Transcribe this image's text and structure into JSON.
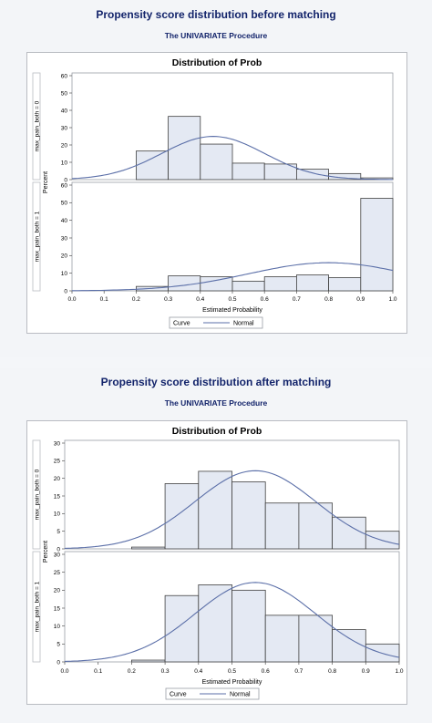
{
  "panels": [
    {
      "page_title": "Propensity score distribution before matching",
      "procedure": "The UNIVARIATE Procedure"
    },
    {
      "page_title": "Propensity score distribution after matching",
      "procedure": "The UNIVARIATE Procedure"
    }
  ],
  "colors": {
    "bar_fill": "#e4e9f3",
    "bar_stroke": "#404040",
    "curve": "#5b6fa8",
    "title_text": "#13246b"
  },
  "chart_data": [
    {
      "type": "bar",
      "title": "Distribution of Prob",
      "xlabel": "Estimated Probability",
      "ylabel": "Percent",
      "xlim": [
        0.0,
        1.0
      ],
      "xticks": [
        "0.0",
        "0.1",
        "0.2",
        "0.3",
        "0.4",
        "0.5",
        "0.6",
        "0.7",
        "0.8",
        "0.9",
        "1.0"
      ],
      "bin_edges": [
        0.2,
        0.3,
        0.4,
        0.5,
        0.6,
        0.7,
        0.8,
        0.9,
        1.0
      ],
      "legend": {
        "title": "Curve",
        "entries": [
          "Normal"
        ],
        "placement": "bottom-center"
      },
      "grid": false,
      "series": [
        {
          "name": "max_pain_both = 0",
          "ylim": [
            0,
            60
          ],
          "yticks": [
            "0",
            "10",
            "20",
            "30",
            "40",
            "50",
            "60"
          ],
          "values": [
            16.5,
            36.5,
            20.5,
            9.5,
            9.0,
            6.0,
            3.5,
            1.0
          ],
          "normal_mean": 0.44,
          "normal_sd": 0.16
        },
        {
          "name": "max_pain_both = 1",
          "ylim": [
            0,
            60
          ],
          "yticks": [
            "0",
            "10",
            "20",
            "30",
            "40",
            "50",
            "60"
          ],
          "values": [
            2.5,
            8.5,
            8.0,
            5.5,
            8.0,
            9.0,
            7.5,
            52.5
          ],
          "normal_mean": 0.8,
          "normal_sd": 0.25
        }
      ]
    },
    {
      "type": "bar",
      "title": "Distribution of Prob",
      "xlabel": "Estimated Probability",
      "ylabel": "Percent",
      "xlim": [
        0.0,
        1.0
      ],
      "xticks": [
        "0.0",
        "0.1",
        "0.2",
        "0.3",
        "0.4",
        "0.5",
        "0.6",
        "0.7",
        "0.8",
        "0.9",
        "1.0"
      ],
      "bin_edges": [
        0.2,
        0.3,
        0.4,
        0.5,
        0.6,
        0.7,
        0.8,
        0.9,
        1.0
      ],
      "legend": {
        "title": "Curve",
        "entries": [
          "Normal"
        ],
        "placement": "bottom-center"
      },
      "grid": false,
      "series": [
        {
          "name": "max_pain_both = 0",
          "ylim": [
            0,
            30
          ],
          "yticks": [
            "0",
            "5",
            "10",
            "15",
            "20",
            "25",
            "30"
          ],
          "values": [
            0.5,
            18.5,
            22.0,
            19.0,
            13.0,
            13.0,
            9.0,
            5.0
          ],
          "normal_mean": 0.57,
          "normal_sd": 0.18
        },
        {
          "name": "max_pain_both = 1",
          "ylim": [
            0,
            30
          ],
          "yticks": [
            "0",
            "5",
            "10",
            "15",
            "20",
            "25",
            "30"
          ],
          "values": [
            0.5,
            18.5,
            21.5,
            20.0,
            13.0,
            13.0,
            9.0,
            5.0
          ],
          "normal_mean": 0.57,
          "normal_sd": 0.18
        }
      ]
    }
  ]
}
